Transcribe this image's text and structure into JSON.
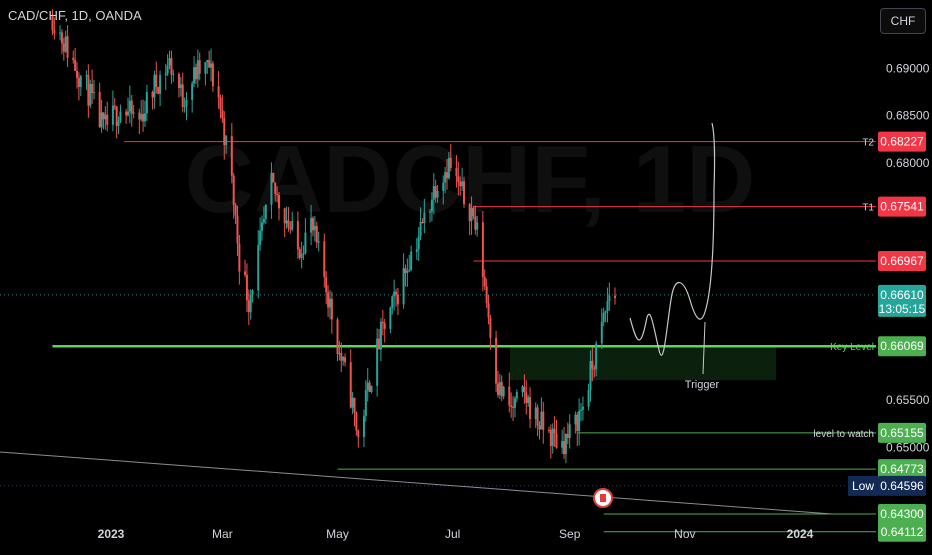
{
  "header": {
    "symbol": "CAD/CHF, 1D, OANDA"
  },
  "currency_button": {
    "label": "CHF"
  },
  "watermark": "CADCHF, 1D",
  "colors": {
    "background": "#000000",
    "up": "#26a69a",
    "down": "#ef5350",
    "red_line": "#f23645",
    "green_line": "#4caf50",
    "key_level": "#5fd35f",
    "low_badge": "#132a55",
    "text": "#d1d4dc"
  },
  "icons": {
    "event_marker": "canada-flag-icon"
  },
  "chart_data": {
    "type": "candlestick",
    "title": "CAD/CHF, 1D, OANDA",
    "xlabel": "",
    "ylabel": "",
    "x_ticks": [
      "2023",
      "Mar",
      "May",
      "Jul",
      "Sep",
      "Nov",
      "2024"
    ],
    "y_ticks": [
      "0.69000",
      "0.68500",
      "0.68000",
      "0.65500",
      "0.65000"
    ],
    "ylim": [
      0.6392,
      0.6972
    ],
    "grid": false,
    "current_price": 0.6661,
    "countdown": "13:05:15",
    "period": {
      "start": "2022-12-01",
      "end": "2023-09-25"
    },
    "price_path": [
      [
        "2022-12-01",
        0.6955
      ],
      [
        "2022-12-10",
        0.6915
      ],
      [
        "2022-12-20",
        0.6875
      ],
      [
        "2022-12-28",
        0.6835
      ],
      [
        "2023-01-06",
        0.6858
      ],
      [
        "2023-01-16",
        0.6845
      ],
      [
        "2023-01-24",
        0.6882
      ],
      [
        "2023-02-01",
        0.6906
      ],
      [
        "2023-02-08",
        0.6868
      ],
      [
        "2023-02-15",
        0.6895
      ],
      [
        "2023-02-22",
        0.6901
      ],
      [
        "2023-02-27",
        0.687
      ],
      [
        "2023-03-06",
        0.678
      ],
      [
        "2023-03-10",
        0.67
      ],
      [
        "2023-03-15",
        0.6655
      ],
      [
        "2023-03-20",
        0.6705
      ],
      [
        "2023-03-27",
        0.6775
      ],
      [
        "2023-04-03",
        0.6748
      ],
      [
        "2023-04-10",
        0.6708
      ],
      [
        "2023-04-17",
        0.6735
      ],
      [
        "2023-04-24",
        0.668
      ],
      [
        "2023-05-02",
        0.66
      ],
      [
        "2023-05-08",
        0.6555
      ],
      [
        "2023-05-12",
        0.651
      ],
      [
        "2023-05-18",
        0.657
      ],
      [
        "2023-05-24",
        0.6618
      ],
      [
        "2023-06-01",
        0.6658
      ],
      [
        "2023-06-08",
        0.67
      ],
      [
        "2023-06-15",
        0.6735
      ],
      [
        "2023-06-22",
        0.6778
      ],
      [
        "2023-06-29",
        0.68
      ],
      [
        "2023-07-05",
        0.677
      ],
      [
        "2023-07-11",
        0.675
      ],
      [
        "2023-07-15",
        0.6718
      ],
      [
        "2023-07-20",
        0.664
      ],
      [
        "2023-07-25",
        0.6565
      ],
      [
        "2023-08-01",
        0.654
      ],
      [
        "2023-08-08",
        0.6555
      ],
      [
        "2023-08-15",
        0.6528
      ],
      [
        "2023-08-22",
        0.6512
      ],
      [
        "2023-08-28",
        0.6505
      ],
      [
        "2023-09-02",
        0.6515
      ],
      [
        "2023-09-08",
        0.6545
      ],
      [
        "2023-09-13",
        0.6585
      ],
      [
        "2023-09-18",
        0.6625
      ],
      [
        "2023-09-22",
        0.6662
      ]
    ],
    "levels": [
      {
        "label": "T2",
        "value": 0.68227,
        "price_label": "0.68227",
        "color": "#f23645",
        "start": "2023-01-08"
      },
      {
        "label": "T1",
        "value": 0.67541,
        "price_label": "0.67541",
        "color": "#f23645",
        "start": "2023-07-12"
      },
      {
        "label": "",
        "value": 0.66967,
        "price_label": "0.66967",
        "color": "#f23645",
        "start": "2023-07-12"
      },
      {
        "label": "Key Level",
        "value": 0.66069,
        "price_label": "0.66069",
        "color": "#5fd35f",
        "start": "2022-12-01"
      },
      {
        "label": "level to watch",
        "value": 0.65155,
        "price_label": "0.65155",
        "color": "#4caf50",
        "start": "2023-09-05"
      },
      {
        "label": "",
        "value": 0.64773,
        "price_label": "0.64773",
        "color": "#4caf50",
        "start": "2023-05-01"
      },
      {
        "label": "",
        "value": 0.643,
        "price_label": "0.64300",
        "color": "#4caf50",
        "start": "2023-09-19"
      },
      {
        "label": "",
        "value": 0.64112,
        "price_label": "0.64112",
        "color": "#4caf50",
        "start": "2023-09-19"
      }
    ],
    "low": {
      "label": "Low",
      "value": 0.64596,
      "price_label": "0.64596"
    },
    "last_price_label": "0.66610",
    "annotations": [
      {
        "text": "Trigger"
      }
    ]
  }
}
